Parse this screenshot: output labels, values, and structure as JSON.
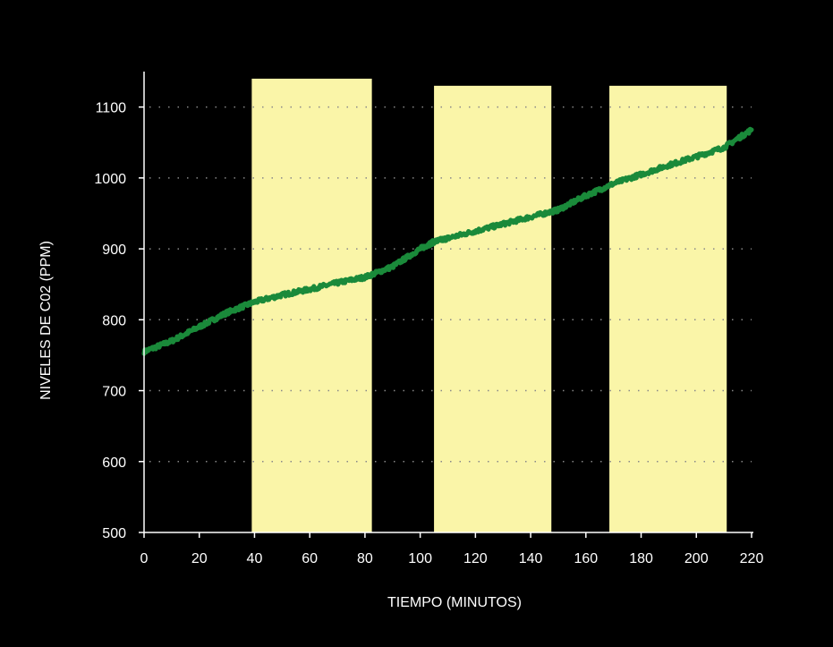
{
  "chart_data": {
    "type": "line",
    "title": "",
    "xlabel": "TIEMPO (MINUTOS)",
    "ylabel": "NIVELES DE C02 (PPM)",
    "xlim": [
      0,
      220
    ],
    "ylim": [
      500,
      1150
    ],
    "x_ticks": [
      0,
      20,
      40,
      60,
      80,
      100,
      120,
      140,
      160,
      180,
      200,
      220
    ],
    "y_ticks": [
      500,
      600,
      700,
      800,
      900,
      1000,
      1100
    ],
    "grid": "dotted-horizontal",
    "legend": "none",
    "shaded_periods": [
      {
        "x_start": 39,
        "x_end": 82.5,
        "top": 1140
      },
      {
        "x_start": 105,
        "x_end": 147.5,
        "top": 1130
      },
      {
        "x_start": 168.5,
        "x_end": 211,
        "top": 1130
      }
    ],
    "series": [
      {
        "color": "#1a8a3a",
        "x": [
          0,
          10,
          20,
          30,
          40,
          50,
          60,
          70,
          80,
          90,
          100,
          105,
          110,
          120,
          130,
          140,
          150,
          160,
          170,
          180,
          190,
          200,
          210,
          220
        ],
        "y": [
          755,
          770,
          790,
          810,
          825,
          835,
          843,
          852,
          860,
          875,
          900,
          910,
          915,
          925,
          935,
          945,
          955,
          975,
          992,
          1005,
          1018,
          1030,
          1043,
          1068
        ]
      }
    ],
    "colors": {
      "background": "#000000",
      "shading": "#faf5a8",
      "line": "#1a8a3a",
      "axis": "#ffffff",
      "grid": "#888888"
    }
  }
}
